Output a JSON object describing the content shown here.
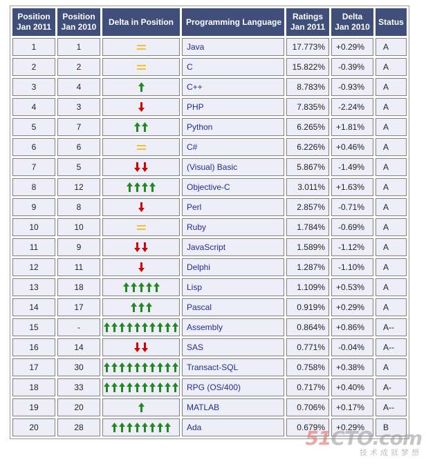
{
  "columns": {
    "position_2011": [
      "Position",
      "Jan 2011"
    ],
    "position_2010": [
      "Position",
      "Jan 2010"
    ],
    "delta_position": "Delta in Position",
    "language": "Programming Language",
    "ratings": [
      "Ratings",
      "Jan 2011"
    ],
    "delta": [
      "Delta",
      "Jan 2010"
    ],
    "status": "Status"
  },
  "colors": {
    "header_bg": "#3f4f7a",
    "cell_bg": "#eeeef8",
    "arrow_up": "#1f8a1f",
    "arrow_down": "#d40000",
    "equal": "#f3c12e",
    "language_text": "#1f2d8f"
  },
  "icons": {
    "up": "green-up-arrow-icon",
    "down": "red-down-arrow-icon",
    "same": "yellow-equal-icon"
  },
  "rows": [
    {
      "pos2011": "1",
      "pos2010": "1",
      "trend": "same",
      "arrows": 1,
      "language": "Java",
      "rating": "17.773%",
      "delta": "+0.29%",
      "status": "A"
    },
    {
      "pos2011": "2",
      "pos2010": "2",
      "trend": "same",
      "arrows": 1,
      "language": "C",
      "rating": "15.822%",
      "delta": "-0.39%",
      "status": "A"
    },
    {
      "pos2011": "3",
      "pos2010": "4",
      "trend": "up",
      "arrows": 1,
      "language": "C++",
      "rating": "8.783%",
      "delta": "-0.93%",
      "status": "A"
    },
    {
      "pos2011": "4",
      "pos2010": "3",
      "trend": "down",
      "arrows": 1,
      "language": "PHP",
      "rating": "7.835%",
      "delta": "-2.24%",
      "status": "A"
    },
    {
      "pos2011": "5",
      "pos2010": "7",
      "trend": "up",
      "arrows": 2,
      "language": "Python",
      "rating": "6.265%",
      "delta": "+1.81%",
      "status": "A"
    },
    {
      "pos2011": "6",
      "pos2010": "6",
      "trend": "same",
      "arrows": 1,
      "language": "C#",
      "rating": "6.226%",
      "delta": "+0.46%",
      "status": "A"
    },
    {
      "pos2011": "7",
      "pos2010": "5",
      "trend": "down",
      "arrows": 2,
      "language": "(Visual) Basic",
      "rating": "5.867%",
      "delta": "-1.49%",
      "status": "A"
    },
    {
      "pos2011": "8",
      "pos2010": "12",
      "trend": "up",
      "arrows": 4,
      "language": "Objective-C",
      "rating": "3.011%",
      "delta": "+1.63%",
      "status": "A"
    },
    {
      "pos2011": "9",
      "pos2010": "8",
      "trend": "down",
      "arrows": 1,
      "language": "Perl",
      "rating": "2.857%",
      "delta": "-0.71%",
      "status": "A"
    },
    {
      "pos2011": "10",
      "pos2010": "10",
      "trend": "same",
      "arrows": 1,
      "language": "Ruby",
      "rating": "1.784%",
      "delta": "-0.69%",
      "status": "A"
    },
    {
      "pos2011": "11",
      "pos2010": "9",
      "trend": "down",
      "arrows": 2,
      "language": "JavaScript",
      "rating": "1.589%",
      "delta": "-1.12%",
      "status": "A"
    },
    {
      "pos2011": "12",
      "pos2010": "11",
      "trend": "down",
      "arrows": 1,
      "language": "Delphi",
      "rating": "1.287%",
      "delta": "-1.10%",
      "status": "A"
    },
    {
      "pos2011": "13",
      "pos2010": "18",
      "trend": "up",
      "arrows": 5,
      "language": "Lisp",
      "rating": "1.109%",
      "delta": "+0.53%",
      "status": "A"
    },
    {
      "pos2011": "14",
      "pos2010": "17",
      "trend": "up",
      "arrows": 3,
      "language": "Pascal",
      "rating": "0.919%",
      "delta": "+0.29%",
      "status": "A"
    },
    {
      "pos2011": "15",
      "pos2010": "-",
      "trend": "up",
      "arrows": 10,
      "language": "Assembly",
      "rating": "0.864%",
      "delta": "+0.86%",
      "status": "A--"
    },
    {
      "pos2011": "16",
      "pos2010": "14",
      "trend": "down",
      "arrows": 2,
      "language": "SAS",
      "rating": "0.771%",
      "delta": "-0.04%",
      "status": "A--"
    },
    {
      "pos2011": "17",
      "pos2010": "30",
      "trend": "up",
      "arrows": 10,
      "language": "Transact-SQL",
      "rating": "0.758%",
      "delta": "+0.38%",
      "status": "A"
    },
    {
      "pos2011": "18",
      "pos2010": "33",
      "trend": "up",
      "arrows": 10,
      "language": "RPG (OS/400)",
      "rating": "0.717%",
      "delta": "+0.40%",
      "status": "A-"
    },
    {
      "pos2011": "19",
      "pos2010": "20",
      "trend": "up",
      "arrows": 1,
      "language": "MATLAB",
      "rating": "0.706%",
      "delta": "+0.17%",
      "status": "A--"
    },
    {
      "pos2011": "20",
      "pos2010": "28",
      "trend": "up",
      "arrows": 8,
      "language": "Ada",
      "rating": "0.679%",
      "delta": "+0.29%",
      "status": "B"
    }
  ],
  "watermark": {
    "mark_prefix": "51",
    "mark_suffix": "CTO.com",
    "sub": "技术成就梦想"
  }
}
